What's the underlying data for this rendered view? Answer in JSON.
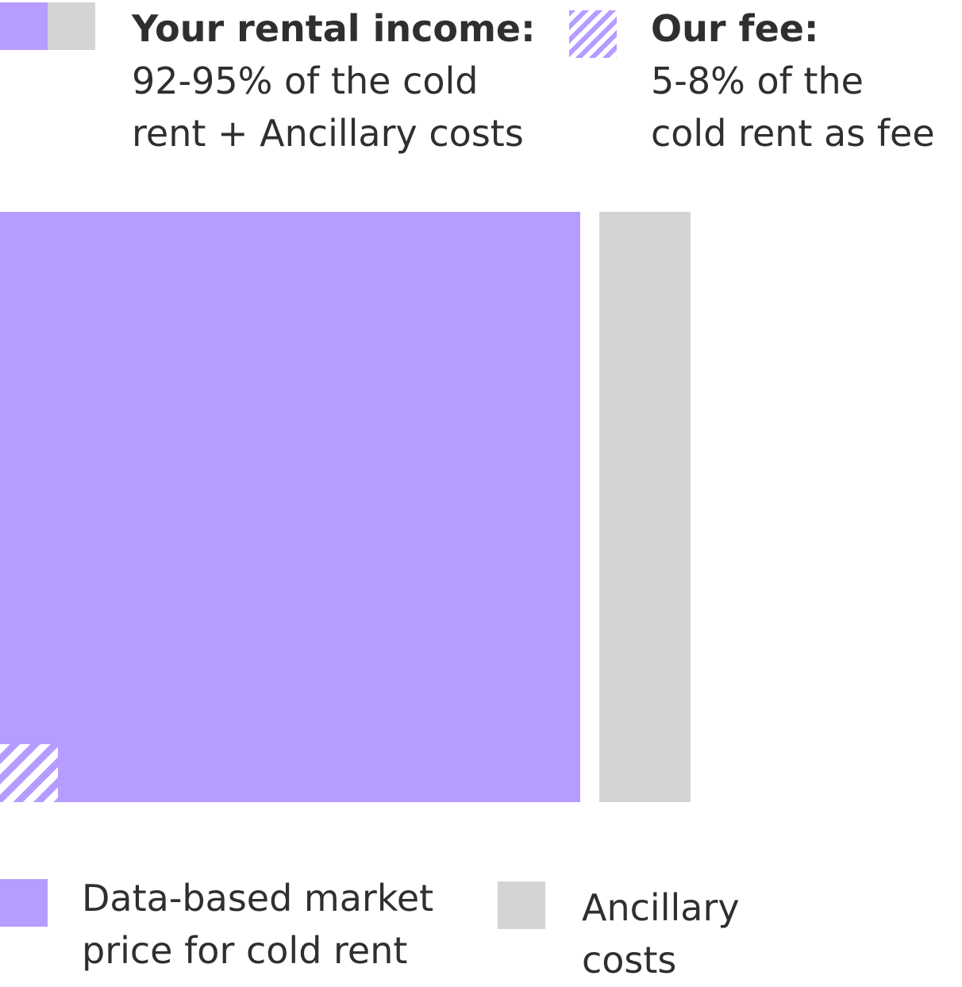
{
  "legend": {
    "income": {
      "title": "Your rental income:",
      "text": "92-95% of the cold\nrent + Ancillary costs"
    },
    "fee": {
      "title": "Our fee:",
      "text": "5-8% of the\ncold rent as fee"
    }
  },
  "bottom_legend": {
    "cold_rent_label": "Data-based market\nprice for cold rent",
    "ancillary_label": "Ancillary\ncosts"
  },
  "colors": {
    "cold_rent": "#b69cff",
    "ancillary": "#d4d4d4",
    "text": "#2f2f2f",
    "background": "#ffffff"
  }
}
